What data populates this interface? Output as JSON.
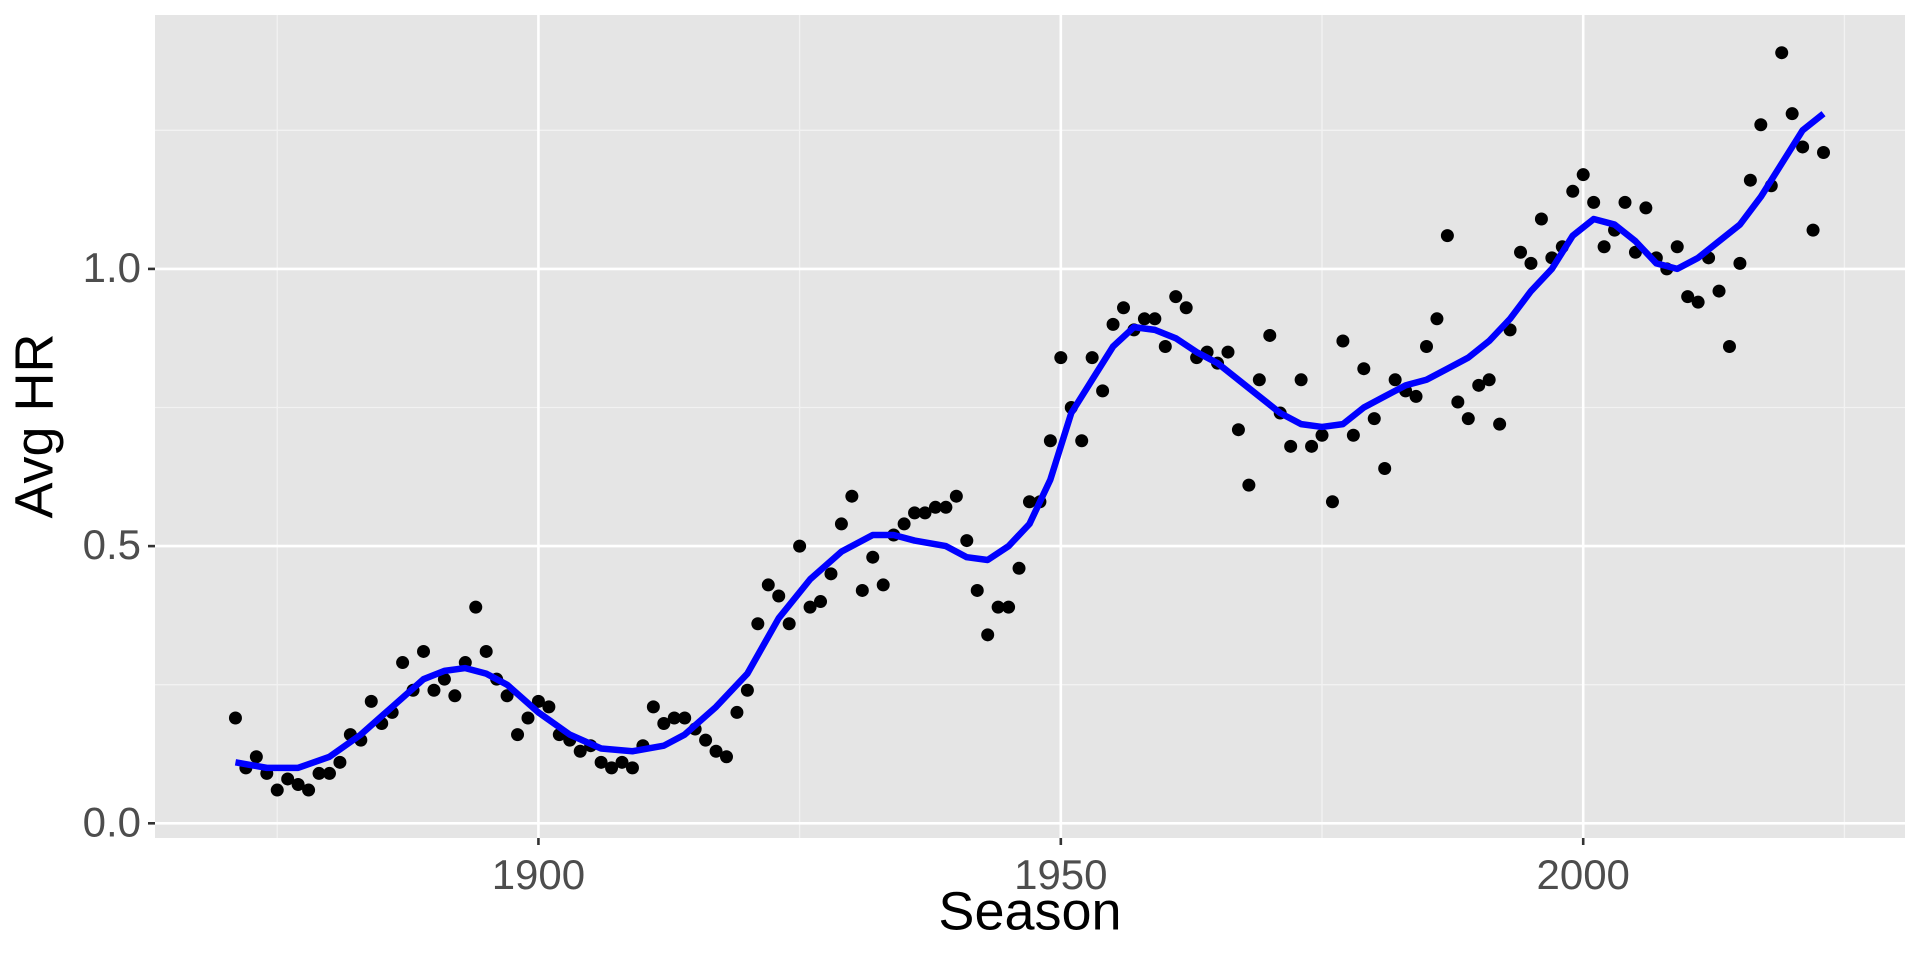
{
  "chart_data": {
    "type": "scatter",
    "x_label": "Season",
    "y_label": "Avg HR",
    "xlim": [
      1863.3,
      2030.8
    ],
    "ylim": [
      -0.0265,
      1.458
    ],
    "xticks": [
      1900,
      1950,
      2000
    ],
    "yticks": [
      {
        "value": 0,
        "label": "0.0"
      },
      {
        "value": 0.5,
        "label": "0.5"
      },
      {
        "value": 1,
        "label": "1.0"
      }
    ],
    "x_minor_breaks": [
      1875,
      1925,
      1975,
      2025
    ],
    "y_minor_breaks": [
      0.25,
      0.75,
      1.25
    ],
    "grid": true,
    "color": "#000000",
    "x": [
      1871,
      1872,
      1873,
      1874,
      1875,
      1876,
      1877,
      1878,
      1879,
      1880,
      1881,
      1882,
      1883,
      1884,
      1885,
      1886,
      1887,
      1888,
      1889,
      1890,
      1891,
      1892,
      1893,
      1894,
      1895,
      1896,
      1897,
      1898,
      1899,
      1900,
      1901,
      1902,
      1903,
      1904,
      1905,
      1906,
      1907,
      1908,
      1909,
      1910,
      1911,
      1912,
      1913,
      1914,
      1915,
      1916,
      1917,
      1918,
      1919,
      1920,
      1921,
      1922,
      1923,
      1924,
      1925,
      1926,
      1927,
      1928,
      1929,
      1930,
      1931,
      1932,
      1933,
      1934,
      1935,
      1936,
      1937,
      1938,
      1939,
      1940,
      1941,
      1942,
      1943,
      1944,
      1945,
      1946,
      1947,
      1948,
      1949,
      1950,
      1951,
      1952,
      1953,
      1954,
      1955,
      1956,
      1957,
      1958,
      1959,
      1960,
      1961,
      1962,
      1963,
      1964,
      1965,
      1966,
      1967,
      1968,
      1969,
      1970,
      1971,
      1972,
      1973,
      1974,
      1975,
      1976,
      1977,
      1978,
      1979,
      1980,
      1981,
      1982,
      1983,
      1984,
      1985,
      1986,
      1987,
      1988,
      1989,
      1990,
      1991,
      1992,
      1993,
      1994,
      1995,
      1996,
      1997,
      1998,
      1999,
      2000,
      2001,
      2002,
      2003,
      2004,
      2005,
      2006,
      2007,
      2008,
      2009,
      2010,
      2011,
      2012,
      2013,
      2014,
      2015,
      2016,
      2017,
      2018,
      2019,
      2020,
      2021,
      2022,
      2023
    ],
    "values": [
      0.19,
      0.1,
      0.12,
      0.09,
      0.06,
      0.08,
      0.07,
      0.06,
      0.09,
      0.09,
      0.11,
      0.16,
      0.15,
      0.22,
      0.18,
      0.2,
      0.29,
      0.24,
      0.31,
      0.24,
      0.26,
      0.23,
      0.29,
      0.39,
      0.31,
      0.26,
      0.23,
      0.16,
      0.19,
      0.22,
      0.21,
      0.16,
      0.15,
      0.13,
      0.14,
      0.11,
      0.1,
      0.11,
      0.1,
      0.14,
      0.21,
      0.18,
      0.19,
      0.19,
      0.17,
      0.15,
      0.13,
      0.12,
      0.2,
      0.24,
      0.36,
      0.43,
      0.41,
      0.36,
      0.5,
      0.39,
      0.4,
      0.45,
      0.54,
      0.59,
      0.42,
      0.48,
      0.43,
      0.52,
      0.54,
      0.56,
      0.56,
      0.57,
      0.57,
      0.59,
      0.51,
      0.42,
      0.34,
      0.39,
      0.39,
      0.46,
      0.58,
      0.58,
      0.69,
      0.84,
      0.75,
      0.69,
      0.84,
      0.78,
      0.9,
      0.93,
      0.89,
      0.91,
      0.91,
      0.86,
      0.95,
      0.93,
      0.84,
      0.85,
      0.83,
      0.85,
      0.71,
      0.61,
      0.8,
      0.88,
      0.74,
      0.68,
      0.8,
      0.68,
      0.7,
      0.58,
      0.87,
      0.7,
      0.82,
      0.73,
      0.64,
      0.8,
      0.78,
      0.77,
      0.86,
      0.91,
      1.06,
      0.76,
      0.73,
      0.79,
      0.8,
      0.72,
      0.89,
      1.03,
      1.01,
      1.09,
      1.02,
      1.04,
      1.14,
      1.17,
      1.12,
      1.04,
      1.07,
      1.12,
      1.03,
      1.11,
      1.02,
      1.0,
      1.04,
      0.95,
      0.94,
      1.02,
      0.96,
      0.86,
      1.01,
      1.16,
      1.26,
      1.15,
      1.39,
      1.28,
      1.22,
      1.07,
      1.21
    ],
    "smooth": {
      "color": "#0000ff",
      "x": [
        1871,
        1874,
        1877,
        1880,
        1883,
        1886,
        1889,
        1891,
        1893,
        1895,
        1897,
        1900,
        1903,
        1906,
        1909,
        1912,
        1914,
        1917,
        1920,
        1923,
        1926,
        1929,
        1932,
        1934,
        1936,
        1939,
        1941,
        1943,
        1945,
        1947,
        1949,
        1951,
        1953,
        1955,
        1957,
        1959,
        1961,
        1963,
        1965,
        1967,
        1969,
        1971,
        1973,
        1975,
        1977,
        1979,
        1981,
        1983,
        1985,
        1987,
        1989,
        1991,
        1993,
        1995,
        1997,
        1999,
        2001,
        2003,
        2005,
        2007,
        2009,
        2011,
        2013,
        2015,
        2017,
        2019,
        2021,
        2023
      ],
      "values": [
        0.11,
        0.1,
        0.1,
        0.12,
        0.16,
        0.21,
        0.26,
        0.275,
        0.28,
        0.27,
        0.25,
        0.2,
        0.16,
        0.135,
        0.13,
        0.14,
        0.16,
        0.21,
        0.27,
        0.37,
        0.44,
        0.49,
        0.52,
        0.52,
        0.51,
        0.5,
        0.48,
        0.475,
        0.5,
        0.54,
        0.62,
        0.74,
        0.8,
        0.86,
        0.895,
        0.89,
        0.875,
        0.85,
        0.83,
        0.8,
        0.77,
        0.74,
        0.72,
        0.715,
        0.72,
        0.75,
        0.77,
        0.79,
        0.8,
        0.82,
        0.84,
        0.87,
        0.91,
        0.96,
        1.0,
        1.06,
        1.09,
        1.08,
        1.05,
        1.01,
        1.0,
        1.02,
        1.05,
        1.08,
        1.13,
        1.19,
        1.25,
        1.28
      ]
    }
  }
}
